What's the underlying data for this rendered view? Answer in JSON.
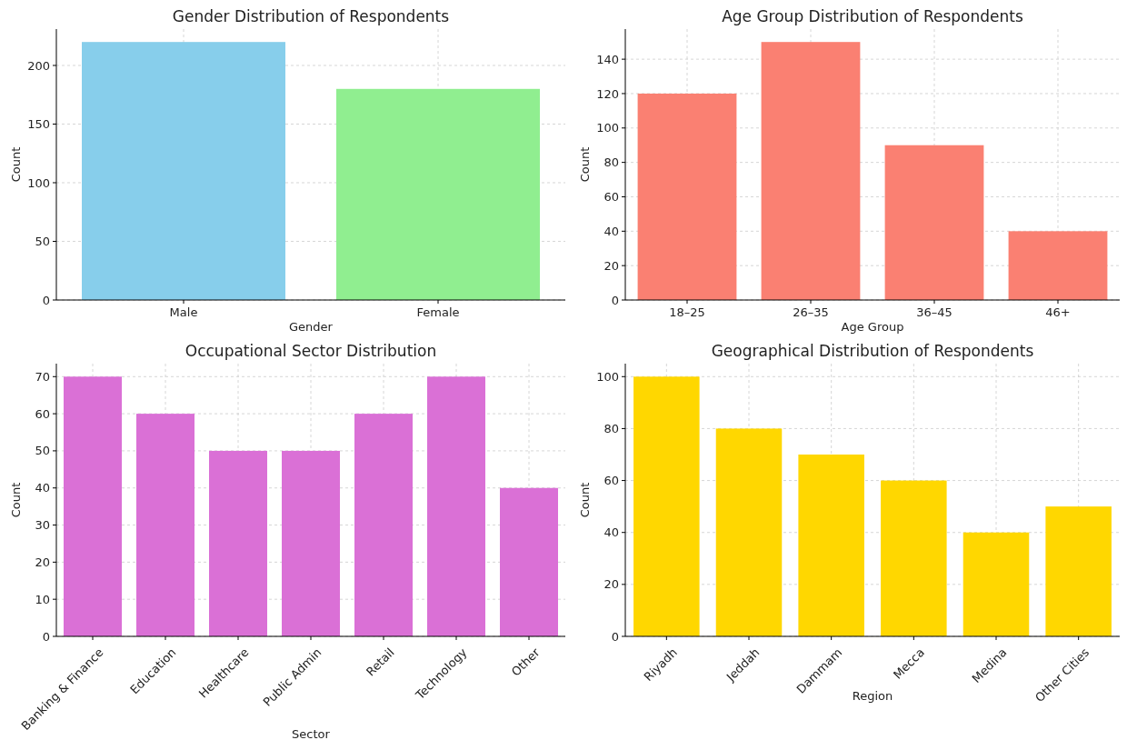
{
  "chart_data": [
    {
      "type": "bar",
      "title": "Gender Distribution of Respondents",
      "xlabel": "Gender",
      "ylabel": "Count",
      "categories": [
        "Male",
        "Female"
      ],
      "values": [
        220,
        180
      ],
      "colors": [
        "#87ceeb",
        "#90ee90"
      ],
      "ylim": [
        0,
        231
      ],
      "yticks": [
        0,
        50,
        100,
        150,
        200
      ],
      "grid": true
    },
    {
      "type": "bar",
      "title": "Age Group Distribution of Respondents",
      "xlabel": "Age Group",
      "ylabel": "Count",
      "categories": [
        "18–25",
        "26–35",
        "36–45",
        "46+"
      ],
      "values": [
        120,
        150,
        90,
        40
      ],
      "color": "#fa8072",
      "ylim": [
        0,
        157.5
      ],
      "yticks": [
        0,
        20,
        40,
        60,
        80,
        100,
        120,
        140
      ],
      "grid": true
    },
    {
      "type": "bar",
      "title": "Occupational Sector Distribution",
      "xlabel": "Sector",
      "ylabel": "Count",
      "categories": [
        "Banking & Finance",
        "Education",
        "Healthcare",
        "Public Admin",
        "Retail",
        "Technology",
        "Other"
      ],
      "values": [
        70,
        60,
        50,
        50,
        60,
        70,
        40
      ],
      "color": "#da70d6",
      "ylim": [
        0,
        73.5
      ],
      "yticks": [
        0,
        10,
        20,
        30,
        40,
        50,
        60,
        70
      ],
      "grid": true
    },
    {
      "type": "bar",
      "title": "Geographical Distribution of Respondents",
      "xlabel": "Region",
      "ylabel": "Count",
      "categories": [
        "Riyadh",
        "Jeddah",
        "Dammam",
        "Mecca",
        "Medina",
        "Other Cities"
      ],
      "values": [
        100,
        80,
        70,
        60,
        40,
        50
      ],
      "color": "#ffd700",
      "ylim": [
        0,
        105
      ],
      "yticks": [
        0,
        20,
        40,
        60,
        80,
        100
      ],
      "grid": true
    }
  ]
}
